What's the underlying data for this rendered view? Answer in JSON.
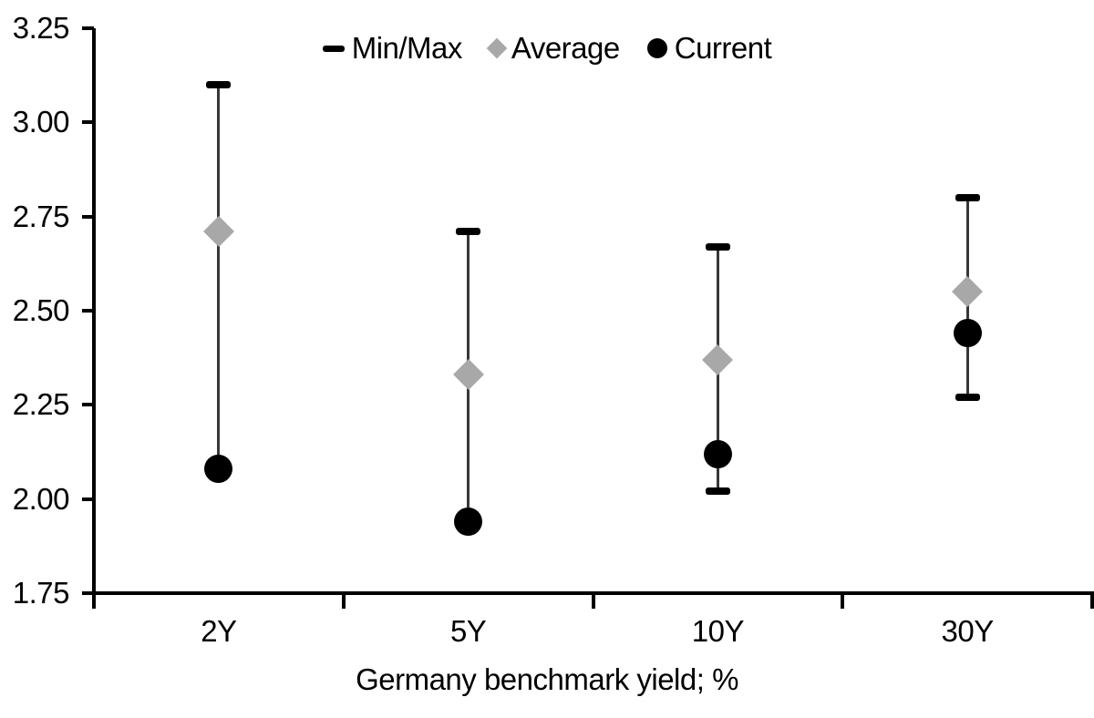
{
  "chart_data": {
    "type": "scatter",
    "subtype": "min-max-range-with-markers",
    "title": "",
    "xlabel": "Germany benchmark yield; %",
    "ylabel": "",
    "ylim": [
      1.75,
      3.25
    ],
    "ytick_step": 0.25,
    "ytick_labels": [
      "1.75",
      "2.00",
      "2.25",
      "2.50",
      "2.75",
      "3.00",
      "3.25"
    ],
    "categories": [
      "2Y",
      "5Y",
      "10Y",
      "30Y"
    ],
    "series": [
      {
        "name": "Min/Max",
        "type": "range",
        "max": [
          3.1,
          2.71,
          2.67,
          2.8
        ],
        "min": [
          2.08,
          1.94,
          2.02,
          2.27
        ],
        "min_cap_visible": [
          false,
          false,
          true,
          true
        ]
      },
      {
        "name": "Average",
        "type": "diamond",
        "values": [
          2.71,
          2.33,
          2.37,
          2.55
        ]
      },
      {
        "name": "Current",
        "type": "circle",
        "values": [
          2.08,
          1.94,
          2.12,
          2.44
        ]
      }
    ],
    "legend": [
      {
        "label": "Min/Max",
        "marker": "dash-icon"
      },
      {
        "label": "Average",
        "marker": "diamond-icon"
      },
      {
        "label": "Current",
        "marker": "circle-icon"
      }
    ],
    "legend_position": "top-center",
    "grid": false,
    "colors": {
      "range": "#000000",
      "line": "#383838",
      "average": "#a8a8a8",
      "current": "#000000",
      "axis": "#000000",
      "text": "#000000",
      "background": "#ffffff"
    }
  }
}
